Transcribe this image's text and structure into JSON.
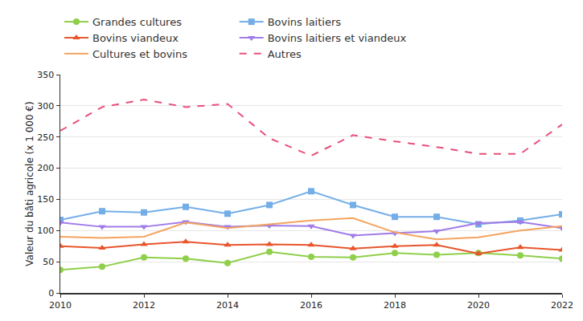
{
  "chart_data": {
    "type": "line",
    "y_label": "Valeur du bâti agricole (x 1 000 €)",
    "x": [
      2010,
      2011,
      2012,
      2013,
      2014,
      2015,
      2016,
      2017,
      2018,
      2019,
      2020,
      2021,
      2022
    ],
    "xlim": [
      2010,
      2022
    ],
    "xticks": [
      2010,
      2012,
      2014,
      2016,
      2018,
      2020,
      2022
    ],
    "ylim": [
      0,
      350
    ],
    "yticks": [
      0,
      50,
      100,
      150,
      200,
      250,
      300,
      350
    ],
    "grid": true,
    "legend": "top",
    "series": [
      {
        "name": "Grandes cultures",
        "color": "#8fcf4a",
        "marker": "circle",
        "line_style": "solid",
        "values": [
          37,
          42,
          57,
          55,
          48,
          66,
          58,
          57,
          64,
          61,
          64,
          60,
          55
        ]
      },
      {
        "name": "Bovins laitiers",
        "color": "#74aee8",
        "marker": "square",
        "line_style": "solid",
        "values": [
          117,
          131,
          129,
          138,
          127,
          141,
          163,
          141,
          122,
          122,
          110,
          116,
          126
        ]
      },
      {
        "name": "Bovins viandeux",
        "color": "#e8552d",
        "marker": "triangle-up",
        "line_style": "solid",
        "values": [
          75,
          72,
          78,
          82,
          77,
          78,
          77,
          71,
          75,
          77,
          63,
          73,
          69
        ]
      },
      {
        "name": "Bovins laitiers et viandeux",
        "color": "#a07ce8",
        "marker": "triangle-down",
        "line_style": "solid",
        "values": [
          113,
          106,
          106,
          114,
          106,
          108,
          107,
          92,
          96,
          99,
          112,
          114,
          104
        ]
      },
      {
        "name": "Cultures et bovins",
        "color": "#f4a460",
        "line_style": "solid",
        "values": [
          90,
          88,
          90,
          113,
          104,
          110,
          116,
          120,
          97,
          86,
          89,
          100,
          107
        ]
      },
      {
        "name": "Autres",
        "color": "#e8507a",
        "line_style": "dash",
        "values": [
          260,
          298,
          310,
          298,
          303,
          248,
          220,
          253,
          243,
          234,
          223,
          223,
          270
        ]
      }
    ]
  }
}
